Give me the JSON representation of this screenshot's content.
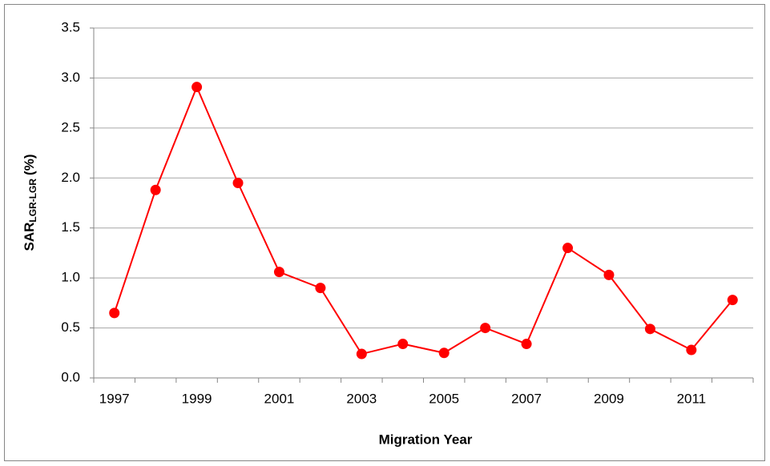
{
  "chart_data": {
    "type": "line",
    "x_label": "Migration Year",
    "y_label": {
      "main": "SAR",
      "sub": "LGR-LGR",
      "unit": "(%)"
    },
    "categories": [
      "1997",
      null,
      "1999",
      null,
      "2001",
      null,
      "2003",
      null,
      "2005",
      null,
      "2007",
      null,
      "2009",
      null,
      "2011",
      null
    ],
    "series": [
      {
        "name": "SAR",
        "color": "#ff0000",
        "values": [
          0.65,
          1.88,
          2.91,
          1.95,
          1.06,
          0.9,
          0.24,
          0.34,
          0.25,
          0.5,
          0.34,
          1.3,
          1.03,
          0.49,
          0.28,
          0.78
        ]
      }
    ],
    "ylim": [
      0,
      3.5
    ],
    "yticks": [
      {
        "value": 0,
        "label": "0.0"
      },
      {
        "value": 0.5,
        "label": "0.5"
      },
      {
        "value": 1,
        "label": "1.0"
      },
      {
        "value": 1.5,
        "label": "1.5"
      },
      {
        "value": 2,
        "label": "2.0"
      },
      {
        "value": 2.5,
        "label": "2.5"
      },
      {
        "value": 3,
        "label": "3.0"
      },
      {
        "value": 3.5,
        "label": "3.5"
      }
    ],
    "grid": true
  }
}
